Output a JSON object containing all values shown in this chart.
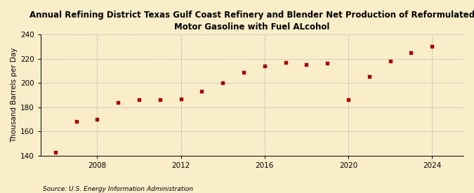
{
  "title": "Annual Refining District Texas Gulf Coast Refinery and Blender Net Production of Reformulated\nMotor Gasoline with Fuel ALcohol",
  "ylabel": "Thousand Barrels per Day",
  "source": "Source: U.S. Energy Information Administration",
  "background_color": "#faeeca",
  "years": [
    2006,
    2007,
    2008,
    2009,
    2010,
    2011,
    2012,
    2013,
    2014,
    2015,
    2016,
    2017,
    2018,
    2019,
    2020,
    2021,
    2022,
    2023,
    2024
  ],
  "values": [
    143,
    168,
    170,
    184,
    186,
    186,
    187,
    193,
    200,
    209,
    214,
    217,
    215,
    216,
    186,
    205,
    218,
    225,
    230
  ],
  "marker_color": "#aa0000",
  "ylim": [
    140,
    240
  ],
  "yticks": [
    140,
    160,
    180,
    200,
    220,
    240
  ],
  "xticks": [
    2008,
    2012,
    2016,
    2020,
    2024
  ],
  "grid_color": "#aaaaaa",
  "title_fontsize": 8.5,
  "label_fontsize": 7.5,
  "tick_fontsize": 7.5,
  "source_fontsize": 6.5
}
